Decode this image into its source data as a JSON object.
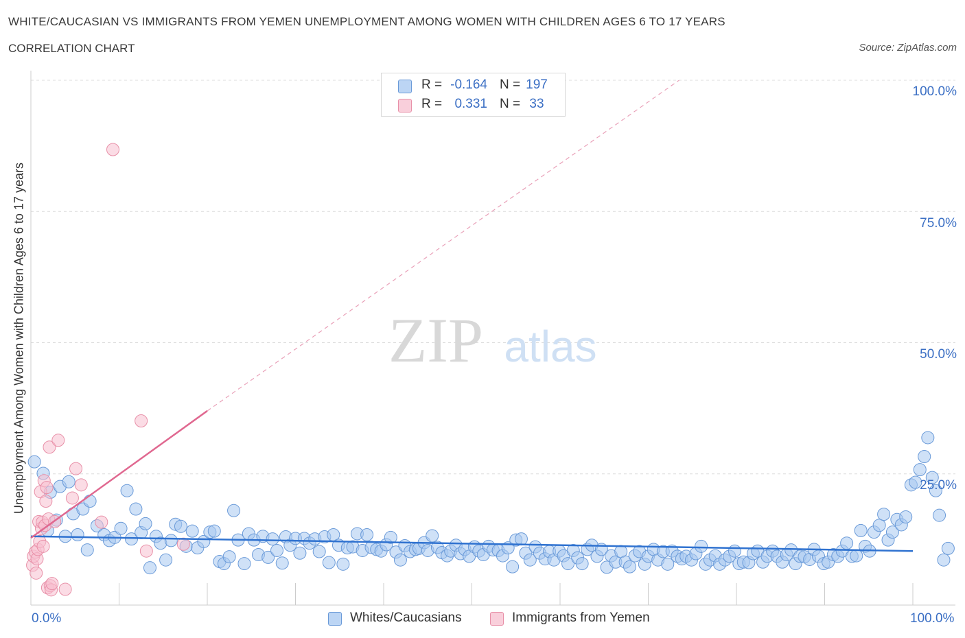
{
  "title": "WHITE/CAUCASIAN VS IMMIGRANTS FROM YEMEN UNEMPLOYMENT AMONG WOMEN WITH CHILDREN AGES 6 TO 17 YEARS",
  "subtitle": "CORRELATION CHART",
  "source": "Source: ZipAtlas.com",
  "watermark": {
    "zip": "ZIP",
    "atlas": "atlas"
  },
  "legend": {
    "rows": [
      {
        "r_label": "R =",
        "r_value": "-0.164",
        "n_label": "N =",
        "n_value": "197",
        "color": "#a8c8f0",
        "border": "#6a9ad8"
      },
      {
        "r_label": "R =",
        "r_value": "0.331",
        "n_label": "N =",
        "n_value": "33",
        "color": "#f8c0d0",
        "border": "#e890a8"
      }
    ]
  },
  "bottom_legend": [
    {
      "label": "Whites/Caucasians",
      "color": "#a8c8f0",
      "border": "#6a9ad8"
    },
    {
      "label": "Immigrants from Yemen",
      "color": "#f8c0d0",
      "border": "#e890a8"
    }
  ],
  "chart_data": {
    "type": "scatter",
    "title": "WHITE/CAUCASIAN VS IMMIGRANTS FROM YEMEN UNEMPLOYMENT AMONG WOMEN WITH CHILDREN AGES 6 TO 17 YEARS",
    "xlabel": "",
    "ylabel": "Unemployment Among Women with Children Ages 6 to 17 years",
    "xlim": [
      0,
      100
    ],
    "ylim": [
      0,
      100
    ],
    "x_ticks": [
      "0.0%",
      "100.0%"
    ],
    "y_ticks": [
      {
        "value": 100,
        "label": "100.0%"
      },
      {
        "value": 75,
        "label": "75.0%"
      },
      {
        "value": 50,
        "label": "50.0%"
      },
      {
        "value": 25,
        "label": "25.0%"
      }
    ],
    "grid": true,
    "legend_position": "top-center",
    "series": [
      {
        "name": "Whites/Caucasians",
        "color": "#a8c8f0",
        "stroke": "#6a9ad8",
        "trend": {
          "x": [
            0,
            100
          ],
          "y": [
            13.1,
            10.3
          ],
          "color": "#2f72d0"
        },
        "points": [
          [
            0.4,
            27.3
          ],
          [
            1.4,
            25.1
          ],
          [
            1.9,
            14.2
          ],
          [
            2.2,
            21.5
          ],
          [
            2.9,
            16.2
          ],
          [
            3.3,
            22.6
          ],
          [
            3.9,
            13.1
          ],
          [
            4.3,
            23.5
          ],
          [
            4.8,
            17.4
          ],
          [
            5.3,
            13.4
          ],
          [
            5.9,
            18.3
          ],
          [
            6.4,
            10.5
          ],
          [
            6.7,
            19.8
          ],
          [
            7.5,
            15.1
          ],
          [
            8.3,
            13.4
          ],
          [
            8.9,
            12.3
          ],
          [
            9.5,
            12.9
          ],
          [
            10.2,
            14.6
          ],
          [
            10.9,
            21.8
          ],
          [
            11.4,
            12.6
          ],
          [
            11.9,
            18.3
          ],
          [
            12.5,
            13.8
          ],
          [
            13.0,
            15.5
          ],
          [
            13.5,
            7.1
          ],
          [
            14.2,
            13.1
          ],
          [
            14.7,
            11.8
          ],
          [
            15.3,
            8.6
          ],
          [
            15.9,
            12.3
          ],
          [
            16.4,
            15.4
          ],
          [
            17.0,
            15.0
          ],
          [
            17.6,
            11.2
          ],
          [
            18.3,
            14.1
          ],
          [
            18.9,
            10.9
          ],
          [
            19.6,
            12.1
          ],
          [
            20.3,
            13.9
          ],
          [
            20.8,
            14.1
          ],
          [
            21.4,
            8.3
          ],
          [
            21.9,
            7.9
          ],
          [
            22.5,
            9.2
          ],
          [
            23.0,
            18.0
          ],
          [
            23.5,
            12.4
          ],
          [
            24.2,
            7.9
          ],
          [
            24.7,
            13.6
          ],
          [
            25.3,
            12.4
          ],
          [
            25.8,
            9.6
          ],
          [
            26.3,
            13.1
          ],
          [
            26.9,
            9.1
          ],
          [
            27.4,
            12.6
          ],
          [
            27.9,
            10.4
          ],
          [
            28.5,
            8.0
          ],
          [
            28.9,
            13.0
          ],
          [
            29.4,
            11.4
          ],
          [
            30.0,
            12.7
          ],
          [
            30.5,
            9.9
          ],
          [
            31.0,
            12.7
          ],
          [
            31.6,
            11.8
          ],
          [
            32.2,
            12.6
          ],
          [
            32.7,
            10.2
          ],
          [
            33.3,
            13.0
          ],
          [
            33.8,
            8.1
          ],
          [
            34.3,
            13.4
          ],
          [
            34.9,
            11.4
          ],
          [
            35.4,
            7.8
          ],
          [
            35.9,
            10.9
          ],
          [
            36.5,
            11.1
          ],
          [
            37.0,
            13.6
          ],
          [
            37.6,
            10.4
          ],
          [
            38.1,
            13.4
          ],
          [
            38.6,
            11.0
          ],
          [
            39.2,
            10.6
          ],
          [
            39.7,
            10.3
          ],
          [
            40.3,
            11.5
          ],
          [
            40.8,
            12.9
          ],
          [
            41.4,
            10.1
          ],
          [
            41.9,
            8.6
          ],
          [
            42.4,
            11.3
          ],
          [
            43.0,
            10.2
          ],
          [
            43.6,
            10.6
          ],
          [
            44.0,
            10.8
          ],
          [
            44.6,
            11.9
          ],
          [
            45.0,
            10.4
          ],
          [
            45.5,
            13.2
          ],
          [
            46.1,
            11.0
          ],
          [
            46.6,
            10.0
          ],
          [
            47.2,
            9.4
          ],
          [
            47.6,
            10.3
          ],
          [
            48.2,
            11.4
          ],
          [
            48.7,
            9.8
          ],
          [
            49.2,
            10.6
          ],
          [
            49.7,
            9.3
          ],
          [
            50.3,
            11.1
          ],
          [
            50.8,
            10.3
          ],
          [
            51.3,
            9.6
          ],
          [
            51.9,
            11.2
          ],
          [
            52.4,
            10.5
          ],
          [
            53.0,
            10.4
          ],
          [
            53.5,
            9.4
          ],
          [
            54.1,
            10.9
          ],
          [
            54.6,
            7.3
          ],
          [
            55.0,
            12.4
          ],
          [
            55.6,
            12.6
          ],
          [
            56.1,
            9.9
          ],
          [
            56.6,
            8.6
          ],
          [
            57.2,
            11.1
          ],
          [
            57.7,
            9.9
          ],
          [
            58.3,
            8.8
          ],
          [
            58.8,
            10.2
          ],
          [
            59.3,
            8.6
          ],
          [
            59.9,
            10.3
          ],
          [
            60.4,
            9.4
          ],
          [
            60.9,
            7.9
          ],
          [
            61.5,
            10.4
          ],
          [
            62.0,
            9.0
          ],
          [
            62.5,
            7.9
          ],
          [
            63.1,
            10.6
          ],
          [
            63.6,
            11.4
          ],
          [
            64.2,
            9.3
          ],
          [
            64.7,
            10.6
          ],
          [
            65.3,
            7.2
          ],
          [
            65.8,
            9.4
          ],
          [
            66.3,
            8.2
          ],
          [
            66.9,
            10.2
          ],
          [
            67.4,
            8.2
          ],
          [
            67.9,
            7.3
          ],
          [
            68.5,
            9.4
          ],
          [
            69.0,
            10.2
          ],
          [
            69.6,
            7.8
          ],
          [
            70.0,
            9.3
          ],
          [
            70.6,
            10.6
          ],
          [
            71.1,
            8.6
          ],
          [
            71.7,
            10.2
          ],
          [
            72.2,
            7.8
          ],
          [
            72.7,
            10.3
          ],
          [
            73.3,
            9.3
          ],
          [
            73.8,
            8.8
          ],
          [
            74.3,
            9.3
          ],
          [
            74.9,
            8.6
          ],
          [
            75.4,
            9.8
          ],
          [
            76.0,
            11.2
          ],
          [
            76.5,
            7.8
          ],
          [
            77.0,
            8.6
          ],
          [
            77.6,
            9.4
          ],
          [
            78.1,
            7.8
          ],
          [
            78.7,
            8.6
          ],
          [
            79.2,
            9.3
          ],
          [
            79.8,
            10.3
          ],
          [
            80.3,
            7.9
          ],
          [
            80.8,
            8.2
          ],
          [
            81.4,
            8.1
          ],
          [
            81.9,
            9.8
          ],
          [
            82.4,
            10.3
          ],
          [
            83.0,
            8.2
          ],
          [
            83.5,
            9.3
          ],
          [
            84.1,
            10.3
          ],
          [
            84.6,
            9.3
          ],
          [
            85.2,
            8.2
          ],
          [
            85.7,
            9.6
          ],
          [
            86.2,
            10.5
          ],
          [
            86.7,
            7.9
          ],
          [
            87.2,
            9.3
          ],
          [
            87.7,
            9.2
          ],
          [
            88.3,
            8.7
          ],
          [
            88.8,
            10.6
          ],
          [
            89.3,
            9.3
          ],
          [
            89.9,
            7.9
          ],
          [
            90.4,
            8.2
          ],
          [
            91.0,
            9.6
          ],
          [
            91.5,
            9.3
          ],
          [
            92.0,
            10.3
          ],
          [
            92.5,
            11.8
          ],
          [
            93.1,
            9.3
          ],
          [
            93.6,
            9.4
          ],
          [
            94.1,
            14.2
          ],
          [
            94.6,
            11.2
          ],
          [
            95.1,
            10.3
          ],
          [
            95.6,
            13.9
          ],
          [
            96.2,
            15.2
          ],
          [
            96.7,
            17.3
          ],
          [
            97.2,
            12.4
          ],
          [
            97.7,
            13.9
          ],
          [
            98.2,
            16.3
          ],
          [
            98.7,
            15.3
          ],
          [
            99.2,
            16.8
          ],
          [
            99.8,
            22.9
          ],
          [
            100.3,
            23.4
          ],
          [
            100.8,
            25.8
          ],
          [
            101.3,
            28.3
          ],
          [
            101.7,
            31.9
          ],
          [
            102.2,
            24.3
          ],
          [
            102.6,
            21.8
          ],
          [
            103.0,
            17.1
          ],
          [
            103.5,
            8.6
          ],
          [
            104.0,
            10.8
          ]
        ]
      },
      {
        "name": "Immigrants from Yemen",
        "color": "#f8c0d0",
        "stroke": "#e890a8",
        "trend": {
          "x": [
            0,
            20
          ],
          "y": [
            12.8,
            37.0
          ],
          "color": "#e06890",
          "dashed_extension_to": [
            73.5,
            100
          ]
        },
        "points": [
          [
            0.2,
            7.6
          ],
          [
            0.3,
            9.3
          ],
          [
            0.5,
            10.1
          ],
          [
            0.6,
            6.1
          ],
          [
            0.7,
            8.8
          ],
          [
            0.8,
            10.6
          ],
          [
            0.9,
            15.9
          ],
          [
            1.0,
            12.1
          ],
          [
            1.1,
            21.6
          ],
          [
            1.2,
            14.6
          ],
          [
            1.3,
            15.8
          ],
          [
            1.4,
            11.2
          ],
          [
            1.5,
            23.7
          ],
          [
            1.6,
            15.2
          ],
          [
            1.7,
            19.8
          ],
          [
            1.8,
            22.4
          ],
          [
            1.9,
            3.3
          ],
          [
            2.0,
            16.4
          ],
          [
            2.1,
            30.1
          ],
          [
            2.2,
            3.7
          ],
          [
            2.3,
            2.9
          ],
          [
            2.4,
            4.1
          ],
          [
            2.7,
            15.9
          ],
          [
            3.1,
            31.4
          ],
          [
            3.9,
            3.0
          ],
          [
            4.7,
            20.4
          ],
          [
            5.1,
            26.0
          ],
          [
            5.7,
            22.9
          ],
          [
            8.0,
            15.8
          ],
          [
            9.3,
            86.8
          ],
          [
            12.5,
            35.1
          ],
          [
            13.1,
            10.3
          ],
          [
            17.3,
            11.6
          ]
        ]
      }
    ]
  }
}
